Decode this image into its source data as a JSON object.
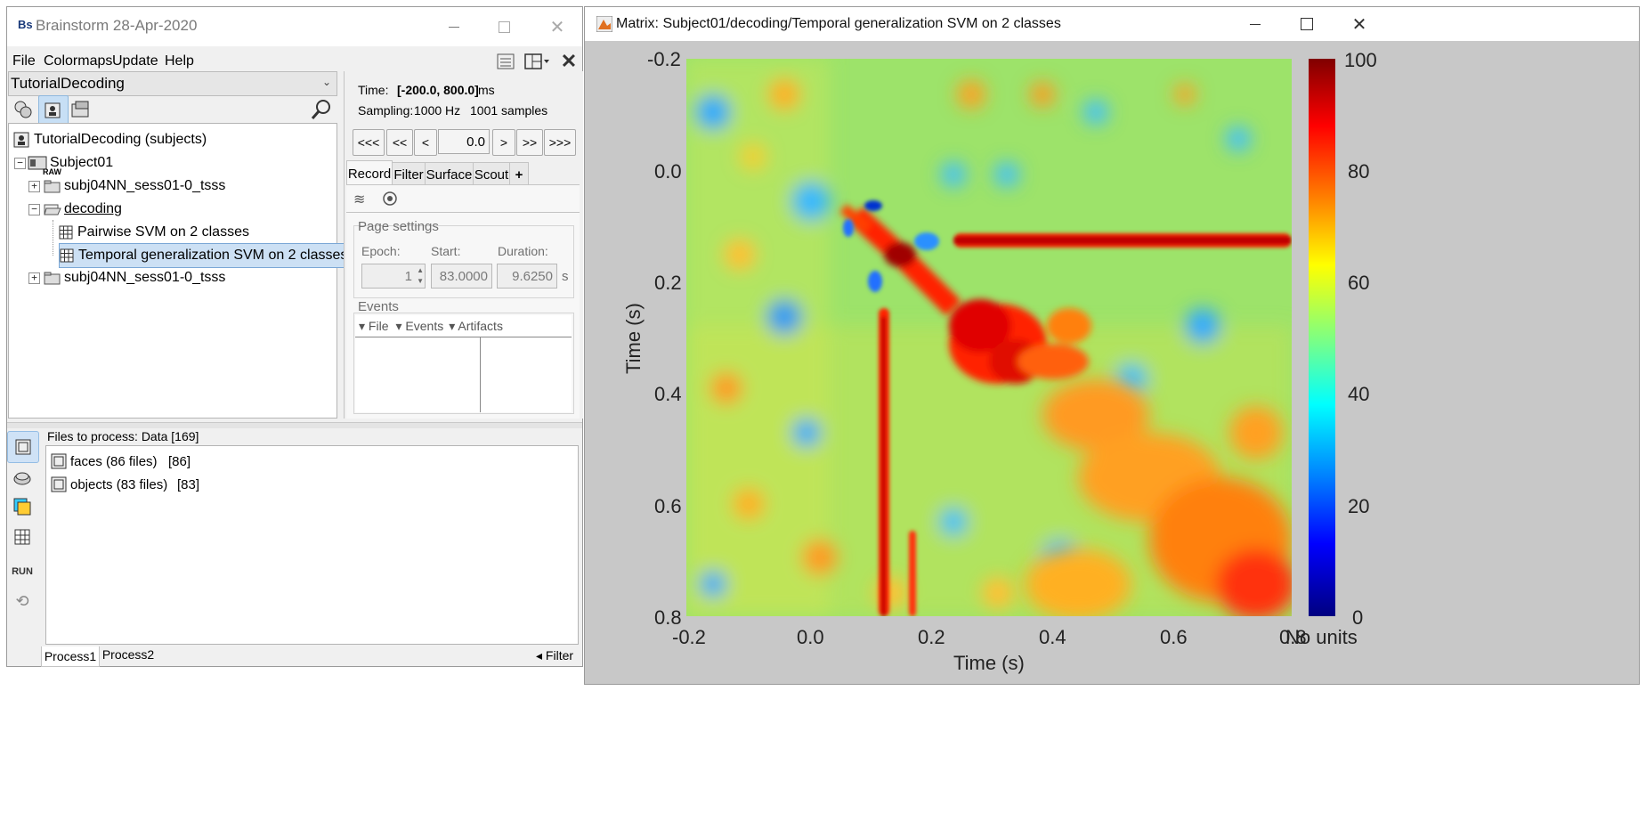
{
  "brainstorm": {
    "title": "Brainstorm 28-Apr-2020",
    "app_icon_text": "Bs",
    "menu": [
      "File",
      "Colormaps",
      "Update",
      "Help"
    ],
    "protocol": "TutorialDecoding",
    "tree": {
      "root": "TutorialDecoding (subjects)",
      "subject": "Subject01",
      "raw_tag": "RAW",
      "raw_folder": "subj04NN_sess01-0_tsss",
      "decoding_folder": "decoding",
      "file1": "Pairwise SVM on 2 classes",
      "file2": "Temporal generalization SVM on 2 classes",
      "folder2": "subj04NN_sess01-0_tsss"
    },
    "time": {
      "label": "Time:",
      "range": "[-200.0, 800.0]",
      "unit": "ms",
      "sampling_label": "Sampling:",
      "sampling_value": "1000 Hz",
      "samples": "1001 samples",
      "current": "0.0",
      "nav": [
        "<<<",
        "<<",
        "<",
        ">",
        ">>",
        ">>>"
      ]
    },
    "tabs": [
      "Record",
      "Filter",
      "Surface",
      "Scout",
      "+"
    ],
    "page_settings": {
      "title": "Page settings",
      "epoch_label": "Epoch:",
      "start_label": "Start:",
      "duration_label": "Duration:",
      "epoch_value": "1",
      "start_value": "83.0000",
      "duration_value": "9.6250",
      "duration_unit": "s"
    },
    "events": {
      "title": "Events",
      "menus": [
        "File",
        "Events",
        "Artifacts"
      ]
    },
    "process": {
      "header": "Files to process: Data [169]",
      "files": [
        {
          "name": "faces (86 files)",
          "count": "[86]"
        },
        {
          "name": "objects (83 files)",
          "count": "[83]"
        }
      ],
      "run_label": "RUN",
      "tabs": [
        "Process1",
        "Process2"
      ],
      "filter_label": "Filter"
    }
  },
  "matrix": {
    "title": "Matrix: Subject01/decoding/Temporal generalization SVM on 2 classes",
    "xlabel": "Time (s)",
    "ylabel": "Time (s)",
    "xticks": [
      "-0.2",
      "0.0",
      "0.2",
      "0.4",
      "0.6",
      "0.8"
    ],
    "yticks": [
      "-0.2",
      "0.0",
      "0.2",
      "0.4",
      "0.6",
      "0.8"
    ],
    "colorbar_ticks": [
      "100",
      "80",
      "60",
      "40",
      "20",
      "0"
    ],
    "colorbar_unit": "No units"
  },
  "chart_data": {
    "type": "heatmap",
    "title": "",
    "xlabel": "Time (s)",
    "ylabel": "Time (s)",
    "xlim": [
      -0.2,
      0.8
    ],
    "ylim": [
      -0.2,
      0.8
    ],
    "clim": [
      0,
      100
    ],
    "colormap": "jet",
    "colorbar_label": "No units",
    "baseline_value": 55,
    "features": [
      {
        "description": "diagonal peak",
        "x": 0.16,
        "y": 0.15,
        "value": 100
      },
      {
        "description": "diagonal band",
        "x": 0.22,
        "y": 0.22,
        "value": 90
      },
      {
        "description": "generalization blob",
        "x": 0.32,
        "y": 0.32,
        "value": 90
      },
      {
        "description": "horizontal band at y≈0.12",
        "x_range": [
          0.25,
          0.8
        ],
        "y": 0.12,
        "value": 85
      },
      {
        "description": "vertical band at x≈0.12",
        "x": 0.12,
        "y_range": [
          0.25,
          0.8
        ],
        "value": 85
      },
      {
        "description": "late region",
        "x": 0.72,
        "y": 0.72,
        "value": 75
      }
    ],
    "colors": {
      "high": "#8b0000",
      "mid": "#90e060",
      "low": "#00008b"
    }
  }
}
